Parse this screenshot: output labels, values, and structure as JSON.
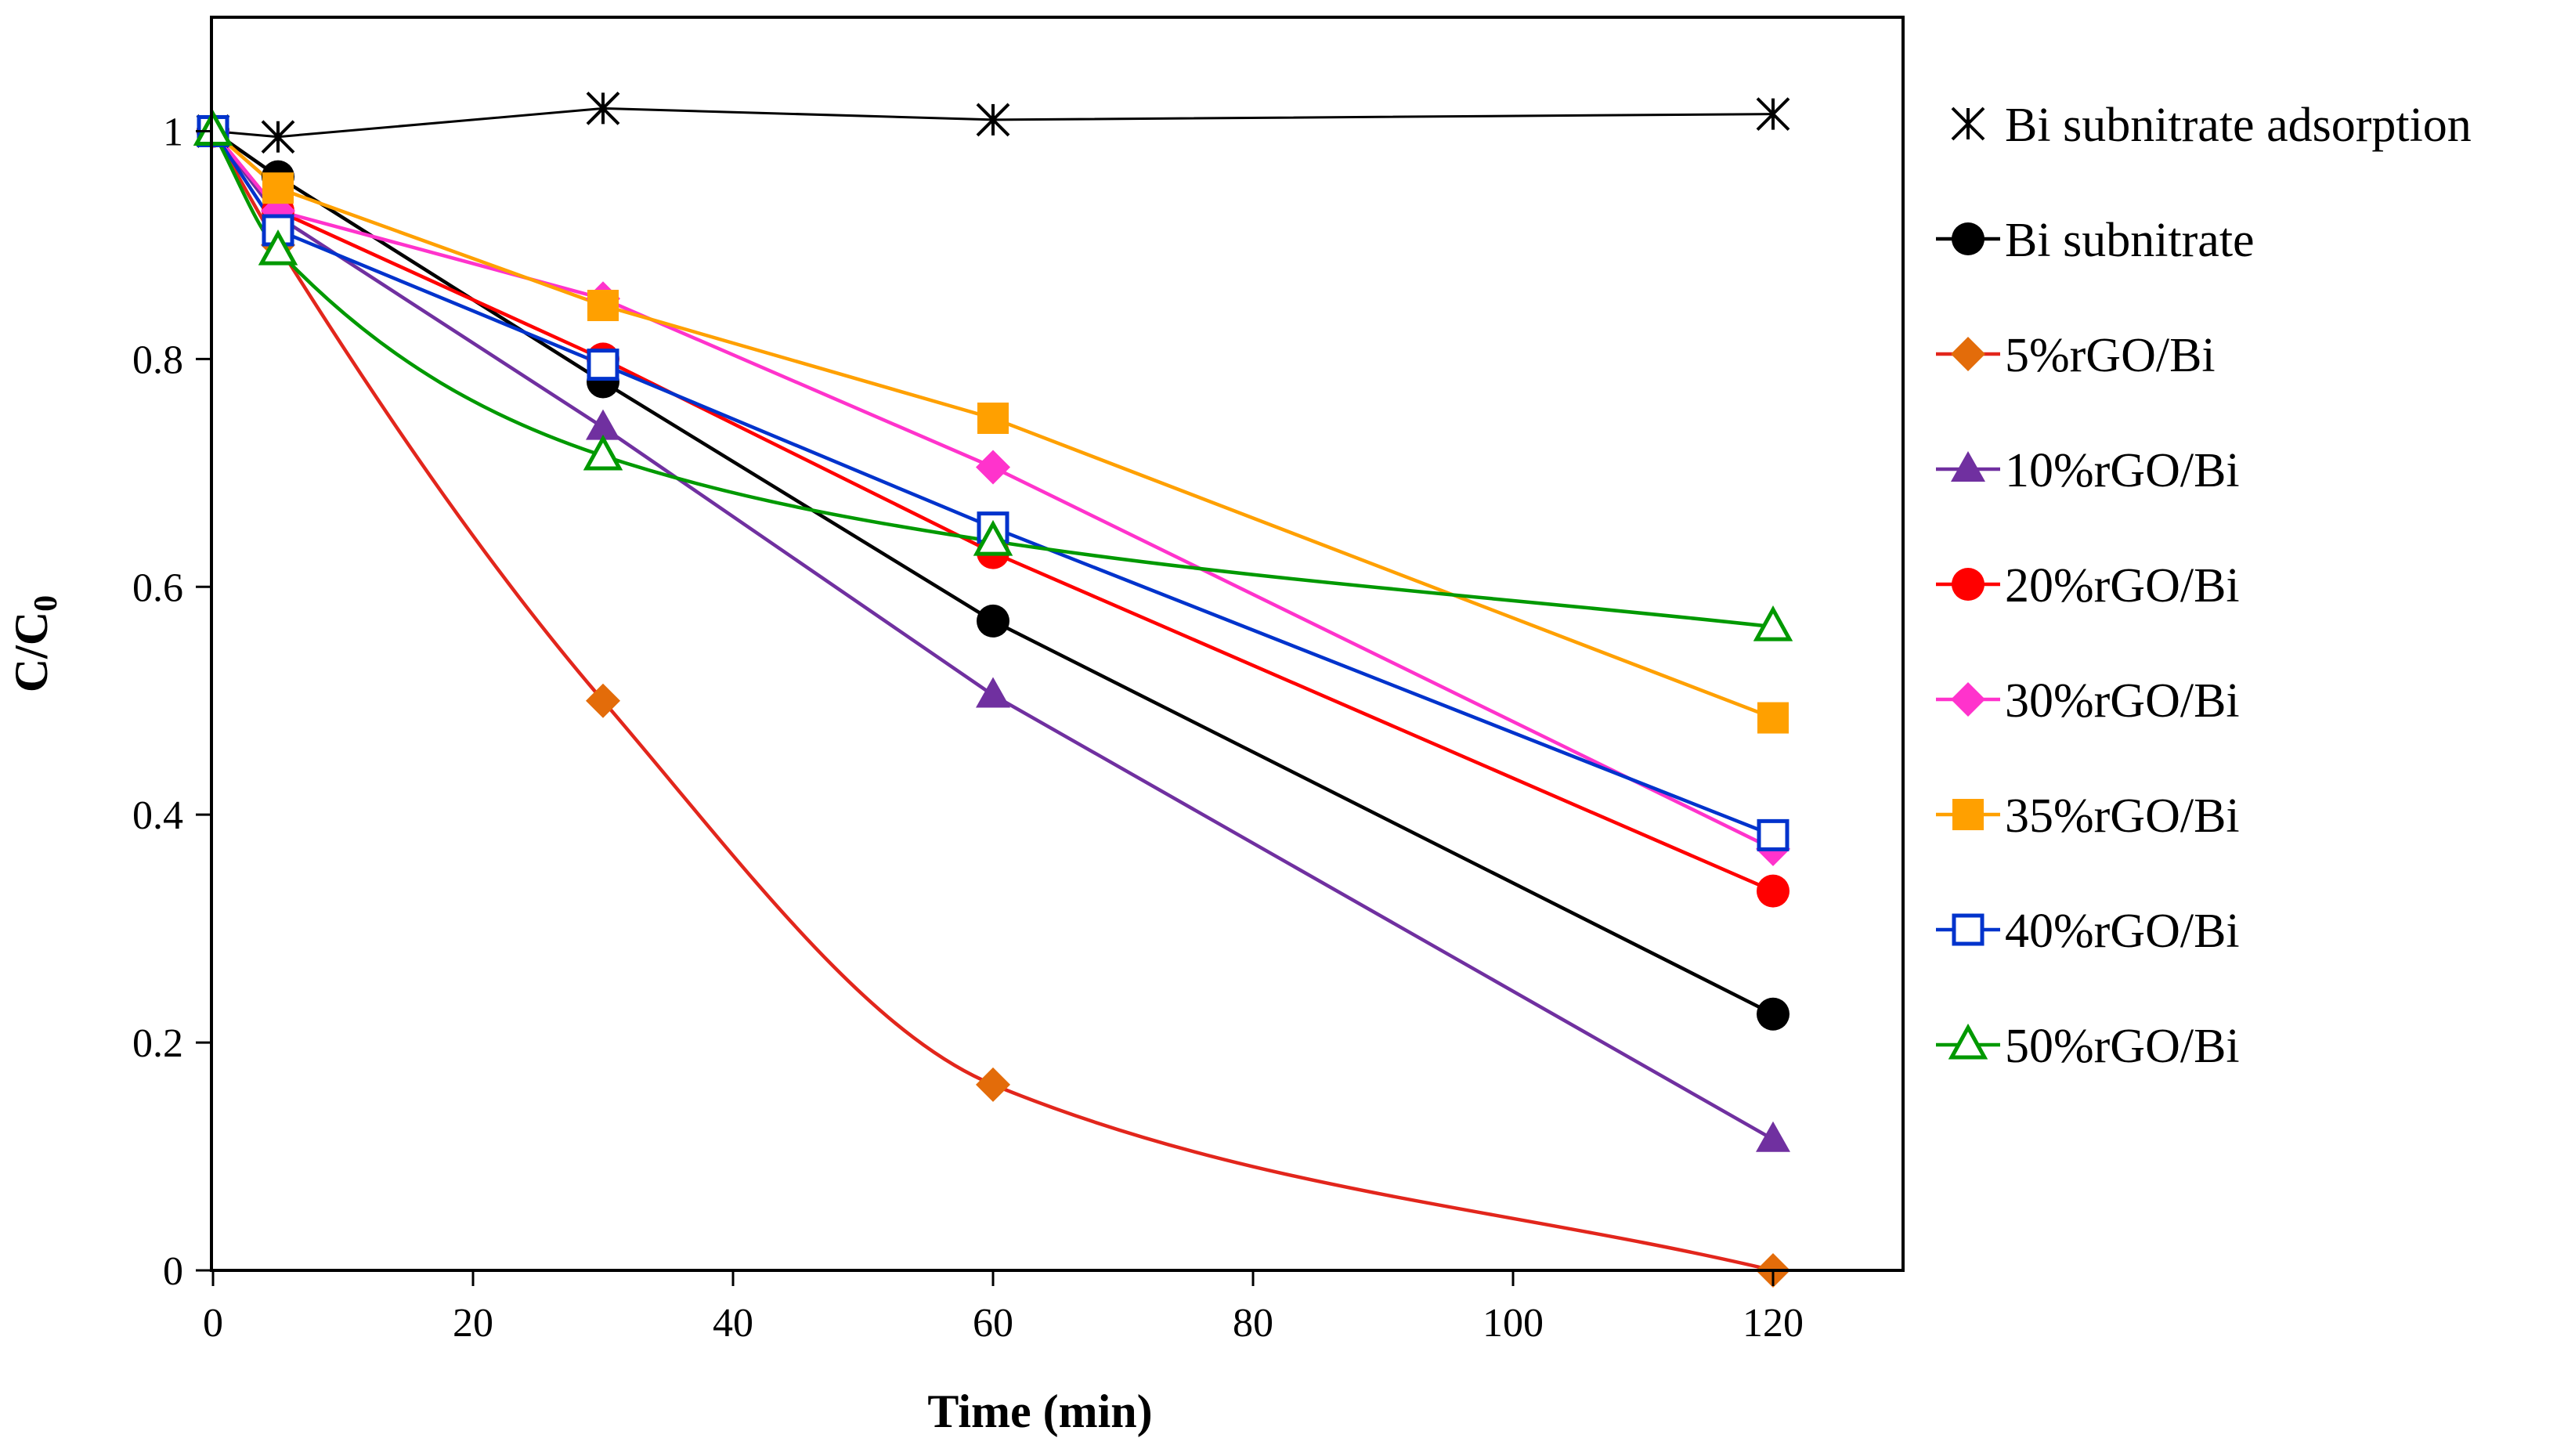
{
  "chart_data": {
    "type": "line",
    "xlabel": "Time (min)",
    "ylabel": {
      "main": "C/C",
      "sub": "0"
    },
    "xlim": [
      0,
      130
    ],
    "ylim": [
      0,
      1.1
    ],
    "xticks": [
      0,
      20,
      40,
      60,
      80,
      100,
      120
    ],
    "yticks": [
      0,
      0.2,
      0.4,
      0.6,
      0.8,
      1
    ],
    "xtick_labels": [
      "0",
      "20",
      "40",
      "60",
      "80",
      "100",
      "120"
    ],
    "ytick_labels": [
      "0",
      "0.2",
      "0.4",
      "0.6",
      "0.8",
      "1"
    ],
    "grid": false,
    "legend_position": "right",
    "x": [
      0,
      5,
      30,
      60,
      120
    ],
    "series": [
      {
        "name": "Bi subnitrate adsorption",
        "color": "#000000",
        "marker": "asterisk",
        "smooth": false,
        "values": [
          1.0,
          0.995,
          1.02,
          1.01,
          1.015
        ]
      },
      {
        "name": "Bi subnitrate",
        "color": "#000000",
        "marker": "circle",
        "smooth": false,
        "values": [
          1.0,
          0.96,
          0.78,
          0.57,
          0.225
        ]
      },
      {
        "name": "5%rGO/Bi",
        "color": "#e2261c",
        "markerColor": "#e36c0a",
        "marker": "diamond",
        "smooth": true,
        "values": [
          1.0,
          0.9,
          0.5,
          0.163,
          0.0
        ]
      },
      {
        "name": "10%rGO/Bi",
        "color": "#7030a0",
        "marker": "triangle",
        "smooth": false,
        "values": [
          1.0,
          0.925,
          0.74,
          0.505,
          0.115
        ]
      },
      {
        "name": "20%rGO/Bi",
        "color": "#ff0000",
        "marker": "circle",
        "smooth": false,
        "values": [
          1.0,
          0.93,
          0.8,
          0.63,
          0.333
        ]
      },
      {
        "name": "30%rGO/Bi",
        "color": "#ff33cc",
        "marker": "diamond",
        "smooth": false,
        "values": [
          1.0,
          0.93,
          0.853,
          0.705,
          0.37
        ]
      },
      {
        "name": "35%rGO/Bi",
        "color": "#ffa000",
        "marker": "square",
        "smooth": false,
        "values": [
          1.0,
          0.95,
          0.847,
          0.748,
          0.485
        ]
      },
      {
        "name": "40%rGO/Bi",
        "color": "#0033cc",
        "marker": "square-open",
        "smooth": false,
        "values": [
          1.0,
          0.913,
          0.795,
          0.652,
          0.382
        ]
      },
      {
        "name": "50%rGO/Bi",
        "color": "#009900",
        "marker": "triangle-open",
        "smooth": true,
        "values": [
          1.0,
          0.895,
          0.715,
          0.64,
          0.565
        ]
      }
    ]
  }
}
